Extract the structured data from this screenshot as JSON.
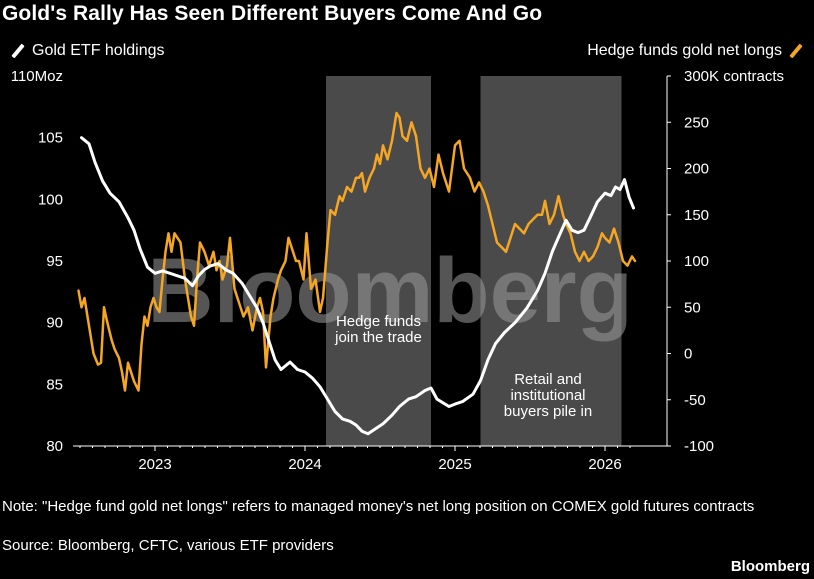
{
  "header": {
    "title": "Gold's Rally Has Seen Different Buyers Come And Go"
  },
  "legend": {
    "left_label": "Gold ETF holdings",
    "right_label": "Hedge funds gold net longs"
  },
  "footer": {
    "note": "Note: \"Hedge fund gold net longs\" refers to managed money's net long position on COMEX gold futures contracts",
    "source": "Source: Bloomberg, CFTC, various ETF providers",
    "brand": "Bloomberg"
  },
  "colors": {
    "background": "#000000",
    "etf": "#ffffff",
    "hedge": "#f5a623",
    "shade": "#4a4a4a",
    "watermark": "#9a9a9a"
  },
  "chart_data": {
    "type": "line",
    "title": "Gold's Rally Has Seen Different Buyers Come And Go",
    "watermark": "Bloomberg",
    "x_range": [
      2022.48,
      2026.2
    ],
    "x_ticks": [
      2023,
      2024,
      2025,
      2026
    ],
    "x_tick_labels": [
      "2023",
      "2024",
      "2025",
      "2026"
    ],
    "left_axis": {
      "label": "Gold ETF holdings",
      "unit_label": "110Moz",
      "range": [
        80,
        110
      ],
      "ticks": [
        80,
        85,
        90,
        95,
        100,
        105,
        110
      ],
      "tick_labels": [
        "80",
        "85",
        "90",
        "95",
        "100",
        "105",
        "110Moz"
      ]
    },
    "right_axis": {
      "label": "Hedge funds gold net longs",
      "unit_label": "300K contracts",
      "range": [
        -100,
        300
      ],
      "ticks": [
        -100,
        -50,
        0,
        50,
        100,
        150,
        200,
        250,
        300
      ],
      "tick_labels": [
        "-100",
        "-50",
        "0",
        "50",
        "100",
        "150",
        "200",
        "250",
        "300K contracts"
      ]
    },
    "shaded_periods": [
      {
        "start": 2024.14,
        "end": 2024.84,
        "label_lines": [
          "Hedge funds",
          "join the trade"
        ]
      },
      {
        "start": 2025.17,
        "end": 2026.11,
        "label_lines": [
          "Retail and",
          "institutional",
          "buyers pile in"
        ]
      }
    ],
    "series": [
      {
        "name": "Gold ETF holdings",
        "axis": "left",
        "unit": "Moz",
        "points": [
          [
            2022.51,
            105
          ],
          [
            2022.56,
            104.5
          ],
          [
            2022.6,
            103
          ],
          [
            2022.65,
            101.5
          ],
          [
            2022.7,
            100.5
          ],
          [
            2022.76,
            99.8
          ],
          [
            2022.82,
            98.5
          ],
          [
            2022.86,
            97.5
          ],
          [
            2022.9,
            96
          ],
          [
            2022.95,
            94.5
          ],
          [
            2023.0,
            94
          ],
          [
            2023.05,
            94.2
          ],
          [
            2023.1,
            94
          ],
          [
            2023.15,
            93.8
          ],
          [
            2023.2,
            93.6
          ],
          [
            2023.25,
            93
          ],
          [
            2023.29,
            93.8
          ],
          [
            2023.33,
            94.3
          ],
          [
            2023.37,
            94.6
          ],
          [
            2023.42,
            94.8
          ],
          [
            2023.47,
            94.3
          ],
          [
            2023.52,
            94
          ],
          [
            2023.58,
            93.2
          ],
          [
            2023.63,
            92.2
          ],
          [
            2023.68,
            91.2
          ],
          [
            2023.72,
            90
          ],
          [
            2023.76,
            88.5
          ],
          [
            2023.8,
            87
          ],
          [
            2023.84,
            86.2
          ],
          [
            2023.9,
            86.8
          ],
          [
            2023.95,
            86.2
          ],
          [
            2024.0,
            86
          ],
          [
            2024.05,
            85.5
          ],
          [
            2024.1,
            84.8
          ],
          [
            2024.15,
            83.8
          ],
          [
            2024.2,
            82.8
          ],
          [
            2024.25,
            82.2
          ],
          [
            2024.3,
            82
          ],
          [
            2024.34,
            81.7
          ],
          [
            2024.38,
            81.2
          ],
          [
            2024.42,
            81.0
          ],
          [
            2024.47,
            81.4
          ],
          [
            2024.52,
            81.8
          ],
          [
            2024.58,
            82.5
          ],
          [
            2024.63,
            83.2
          ],
          [
            2024.69,
            83.8
          ],
          [
            2024.74,
            84.0
          ],
          [
            2024.8,
            84.5
          ],
          [
            2024.84,
            84.7
          ],
          [
            2024.88,
            83.8
          ],
          [
            2024.92,
            83.5
          ],
          [
            2024.96,
            83.2
          ],
          [
            2025.0,
            83.4
          ],
          [
            2025.05,
            83.6
          ],
          [
            2025.12,
            84.2
          ],
          [
            2025.17,
            85.3
          ],
          [
            2025.22,
            87
          ],
          [
            2025.27,
            88.3
          ],
          [
            2025.33,
            89.2
          ],
          [
            2025.4,
            90
          ],
          [
            2025.48,
            91.2
          ],
          [
            2025.55,
            92.6
          ],
          [
            2025.6,
            94
          ],
          [
            2025.65,
            95.8
          ],
          [
            2025.7,
            97.2
          ],
          [
            2025.74,
            98.3
          ],
          [
            2025.78,
            97.5
          ],
          [
            2025.82,
            97.3
          ],
          [
            2025.86,
            97.5
          ],
          [
            2025.9,
            98.5
          ],
          [
            2025.95,
            99.8
          ],
          [
            2026.0,
            100.5
          ],
          [
            2026.04,
            100.3
          ],
          [
            2026.07,
            101
          ],
          [
            2026.1,
            100.8
          ],
          [
            2026.13,
            101.6
          ],
          [
            2026.16,
            100.2
          ],
          [
            2026.19,
            99.3
          ]
        ]
      },
      {
        "name": "Hedge funds gold net longs",
        "axis": "right",
        "unit": "K contracts",
        "points": [
          [
            2022.49,
            68
          ],
          [
            2022.51,
            50
          ],
          [
            2022.53,
            60
          ],
          [
            2022.56,
            30
          ],
          [
            2022.59,
            0
          ],
          [
            2022.62,
            -12
          ],
          [
            2022.64,
            -10
          ],
          [
            2022.66,
            50
          ],
          [
            2022.68,
            35
          ],
          [
            2022.71,
            15
          ],
          [
            2022.73,
            5
          ],
          [
            2022.76,
            -5
          ],
          [
            2022.78,
            -20
          ],
          [
            2022.8,
            -40
          ],
          [
            2022.82,
            -10
          ],
          [
            2022.84,
            -20
          ],
          [
            2022.86,
            -30
          ],
          [
            2022.89,
            -40
          ],
          [
            2022.91,
            10
          ],
          [
            2022.93,
            40
          ],
          [
            2022.95,
            30
          ],
          [
            2022.97,
            50
          ],
          [
            2022.99,
            60
          ],
          [
            2023.01,
            50
          ],
          [
            2023.03,
            45
          ],
          [
            2023.05,
            80
          ],
          [
            2023.07,
            110
          ],
          [
            2023.09,
            130
          ],
          [
            2023.11,
            110
          ],
          [
            2023.13,
            130
          ],
          [
            2023.15,
            125
          ],
          [
            2023.17,
            120
          ],
          [
            2023.2,
            80
          ],
          [
            2023.22,
            60
          ],
          [
            2023.24,
            40
          ],
          [
            2023.26,
            30
          ],
          [
            2023.28,
            80
          ],
          [
            2023.3,
            120
          ],
          [
            2023.33,
            110
          ],
          [
            2023.36,
            95
          ],
          [
            2023.39,
            110
          ],
          [
            2023.41,
            90
          ],
          [
            2023.43,
            100
          ],
          [
            2023.45,
            80
          ],
          [
            2023.48,
            95
          ],
          [
            2023.5,
            125
          ],
          [
            2023.53,
            70
          ],
          [
            2023.56,
            55
          ],
          [
            2023.59,
            40
          ],
          [
            2023.62,
            50
          ],
          [
            2023.65,
            25
          ],
          [
            2023.68,
            50
          ],
          [
            2023.7,
            60
          ],
          [
            2023.72,
            45
          ],
          [
            2023.74,
            -15
          ],
          [
            2023.77,
            40
          ],
          [
            2023.79,
            60
          ],
          [
            2023.82,
            80
          ],
          [
            2023.84,
            90
          ],
          [
            2023.87,
            100
          ],
          [
            2023.89,
            125
          ],
          [
            2023.92,
            110
          ],
          [
            2023.94,
            100
          ],
          [
            2023.96,
            100
          ],
          [
            2023.99,
            80
          ],
          [
            2024.01,
            130
          ],
          [
            2024.04,
            70
          ],
          [
            2024.07,
            80
          ],
          [
            2024.1,
            45
          ],
          [
            2024.12,
            60
          ],
          [
            2024.15,
            120
          ],
          [
            2024.17,
            155
          ],
          [
            2024.2,
            150
          ],
          [
            2024.23,
            170
          ],
          [
            2024.25,
            165
          ],
          [
            2024.28,
            180
          ],
          [
            2024.31,
            175
          ],
          [
            2024.34,
            190
          ],
          [
            2024.36,
            190
          ],
          [
            2024.38,
            195
          ],
          [
            2024.4,
            175
          ],
          [
            2024.43,
            190
          ],
          [
            2024.46,
            200
          ],
          [
            2024.48,
            215
          ],
          [
            2024.5,
            205
          ],
          [
            2024.52,
            225
          ],
          [
            2024.55,
            210
          ],
          [
            2024.58,
            230
          ],
          [
            2024.61,
            260
          ],
          [
            2024.63,
            255
          ],
          [
            2024.65,
            235
          ],
          [
            2024.68,
            230
          ],
          [
            2024.71,
            250
          ],
          [
            2024.74,
            235
          ],
          [
            2024.77,
            200
          ],
          [
            2024.8,
            190
          ],
          [
            2024.83,
            200
          ],
          [
            2024.86,
            180
          ],
          [
            2024.89,
            215
          ],
          [
            2024.92,
            195
          ],
          [
            2024.96,
            175
          ],
          [
            2025.0,
            225
          ],
          [
            2025.03,
            230
          ],
          [
            2025.06,
            200
          ],
          [
            2025.1,
            190
          ],
          [
            2025.13,
            175
          ],
          [
            2025.16,
            185
          ],
          [
            2025.19,
            175
          ],
          [
            2025.22,
            160
          ],
          [
            2025.25,
            140
          ],
          [
            2025.28,
            120
          ],
          [
            2025.31,
            115
          ],
          [
            2025.34,
            110
          ],
          [
            2025.37,
            125
          ],
          [
            2025.4,
            140
          ],
          [
            2025.43,
            135
          ],
          [
            2025.46,
            130
          ],
          [
            2025.49,
            140
          ],
          [
            2025.52,
            145
          ],
          [
            2025.55,
            150
          ],
          [
            2025.58,
            150
          ],
          [
            2025.6,
            165
          ],
          [
            2025.63,
            140
          ],
          [
            2025.66,
            150
          ],
          [
            2025.69,
            170
          ],
          [
            2025.72,
            150
          ],
          [
            2025.74,
            140
          ],
          [
            2025.77,
            130
          ],
          [
            2025.8,
            110
          ],
          [
            2025.83,
            100
          ],
          [
            2025.86,
            110
          ],
          [
            2025.89,
            100
          ],
          [
            2025.92,
            105
          ],
          [
            2025.95,
            115
          ],
          [
            2025.98,
            130
          ],
          [
            2026.0,
            125
          ],
          [
            2026.03,
            120
          ],
          [
            2026.06,
            135
          ],
          [
            2026.09,
            120
          ],
          [
            2026.12,
            100
          ],
          [
            2026.15,
            95
          ],
          [
            2026.18,
            105
          ],
          [
            2026.2,
            100
          ]
        ]
      }
    ]
  }
}
